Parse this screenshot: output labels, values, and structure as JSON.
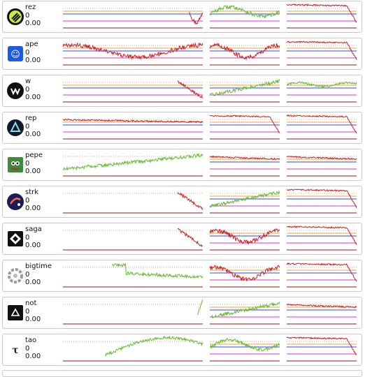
{
  "coins": [
    {
      "symbol": "rez",
      "value1": "0",
      "value2": "0.00",
      "logo_icon": "rez-logo-icon",
      "trend": [
        "red-spike",
        "green-mixed",
        "red-down"
      ]
    },
    {
      "symbol": "ape",
      "value1": "0",
      "value2": "0.00",
      "logo_icon": "ape-logo-icon",
      "trend": [
        "red-wave",
        "red-wave",
        "red-down"
      ]
    },
    {
      "symbol": "w",
      "value1": "0",
      "value2": "0.00",
      "logo_icon": "w-logo-icon",
      "trend": [
        "red-late",
        "green-up",
        "green-flat"
      ]
    },
    {
      "symbol": "rep",
      "value1": "0",
      "value2": "0.00",
      "logo_icon": "rep-logo-icon",
      "trend": [
        "red-flat",
        "red-down",
        "red-down"
      ]
    },
    {
      "symbol": "pepe",
      "value1": "0",
      "value2": "0.00",
      "logo_icon": "pepe-logo-icon",
      "trend": [
        "green-up",
        "red-flat",
        "red-flat"
      ]
    },
    {
      "symbol": "strk",
      "value1": "0",
      "value2": "0.00",
      "logo_icon": "strk-logo-icon",
      "trend": [
        "red-late",
        "green-up",
        "red-down"
      ]
    },
    {
      "symbol": "saga",
      "value1": "0",
      "value2": "0.00",
      "logo_icon": "saga-logo-icon",
      "trend": [
        "red-late",
        "red-wave",
        "red-down"
      ]
    },
    {
      "symbol": "bigtime",
      "value1": "0",
      "value2": "0.00",
      "logo_icon": "bigtime-logo-icon",
      "trend": [
        "green-mid",
        "red-wave",
        "red-down"
      ]
    },
    {
      "symbol": "not",
      "value1": "0",
      "value2": "0.00",
      "logo_icon": "not-logo-icon",
      "trend": [
        "green-late",
        "green-up",
        "red-flat"
      ]
    },
    {
      "symbol": "tao",
      "value1": "0",
      "value2": "0.00",
      "logo_icon": "tao-logo-icon",
      "trend": [
        "green-hump",
        "green-mixed",
        "red-down"
      ]
    }
  ],
  "colors": {
    "up": "#66bb33",
    "down": "#cc2222",
    "orange": "#f0a030",
    "blue": "#3344ee",
    "magenta": "#dd33cc",
    "baseline": "#8b1a1a",
    "dotted": "#999999"
  }
}
